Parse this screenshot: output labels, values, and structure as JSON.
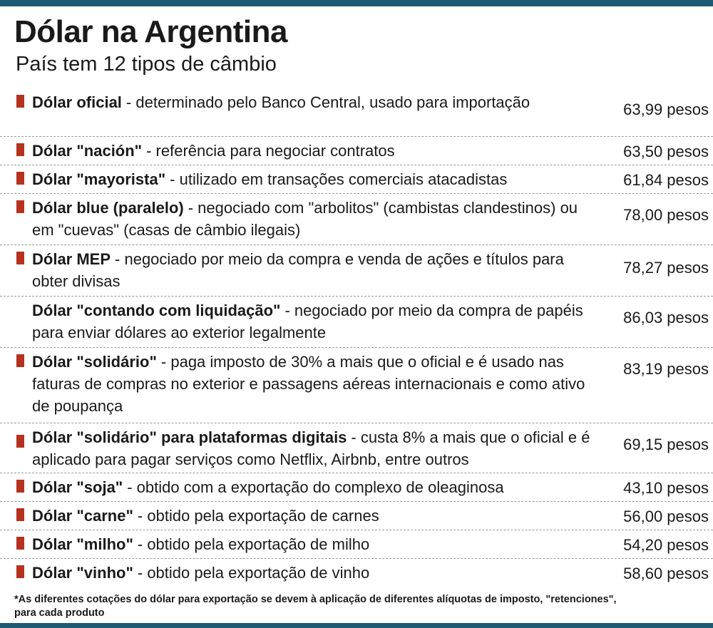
{
  "header": {
    "title": "Dólar na Argentina",
    "subtitle": "País tem 12 tipos de câmbio"
  },
  "rows": [
    {
      "name": "Dólar oficial",
      "description": "- determinado pelo Banco Central, usado para importação",
      "value": "63,99 pesos"
    },
    {
      "name": "Dólar \"nación\"",
      "description": "- referência para negociar contratos",
      "value": "63,50 pesos"
    },
    {
      "name": "Dólar \"mayorista\"",
      "description": "- utilizado em transações comerciais atacadistas",
      "value": "61,84 pesos"
    },
    {
      "name": "Dólar blue (paralelo)",
      "description": "- negociado com \"arbolitos\" (cambistas clandestinos) ou em \"cuevas\" (casas de câmbio ilegais)",
      "value": "78,00 pesos"
    },
    {
      "name": "Dólar MEP",
      "description": "- negociado por meio da compra e venda de ações e títulos para obter divisas",
      "value": "78,27 pesos"
    },
    {
      "name": "Dólar \"contando com liquidação\"",
      "description": "- negociado por meio da compra de papéis para enviar dólares ao exterior legalmente",
      "value": "86,03 pesos"
    },
    {
      "name": "Dólar \"solidário\"",
      "description": "- paga imposto de 30% a mais que o oficial e é usado nas faturas de compras no exterior e passagens aéreas internacionais e como ativo de poupança",
      "value": "83,19 pesos"
    },
    {
      "name": "Dólar \"solidário\" para plataformas digitais",
      "description": "- custa 8% a mais que o oficial e é aplicado para pagar serviços como Netflix, Airbnb, entre outros",
      "value": "69,15 pesos"
    },
    {
      "name": "Dólar \"soja\"",
      "description": "- obtido com a exportação do complexo de oleaginosa",
      "value": "43,10 pesos"
    },
    {
      "name": "Dólar \"carne\"",
      "description": "- obtido pela exportação de carnes",
      "value": "56,00 pesos"
    },
    {
      "name": "Dólar \"milho\"",
      "description": "- obtido pela exportação de milho",
      "value": "54,20 pesos"
    },
    {
      "name": "Dólar \"vinho\"",
      "description": "- obtido pela exportação de vinho",
      "value": "58,60 pesos"
    }
  ],
  "footnote": "*As diferentes cotações do dólar para exportação se devem à aplicação de diferentes alíquotas de imposto, \"retenciones\", para cada produto"
}
